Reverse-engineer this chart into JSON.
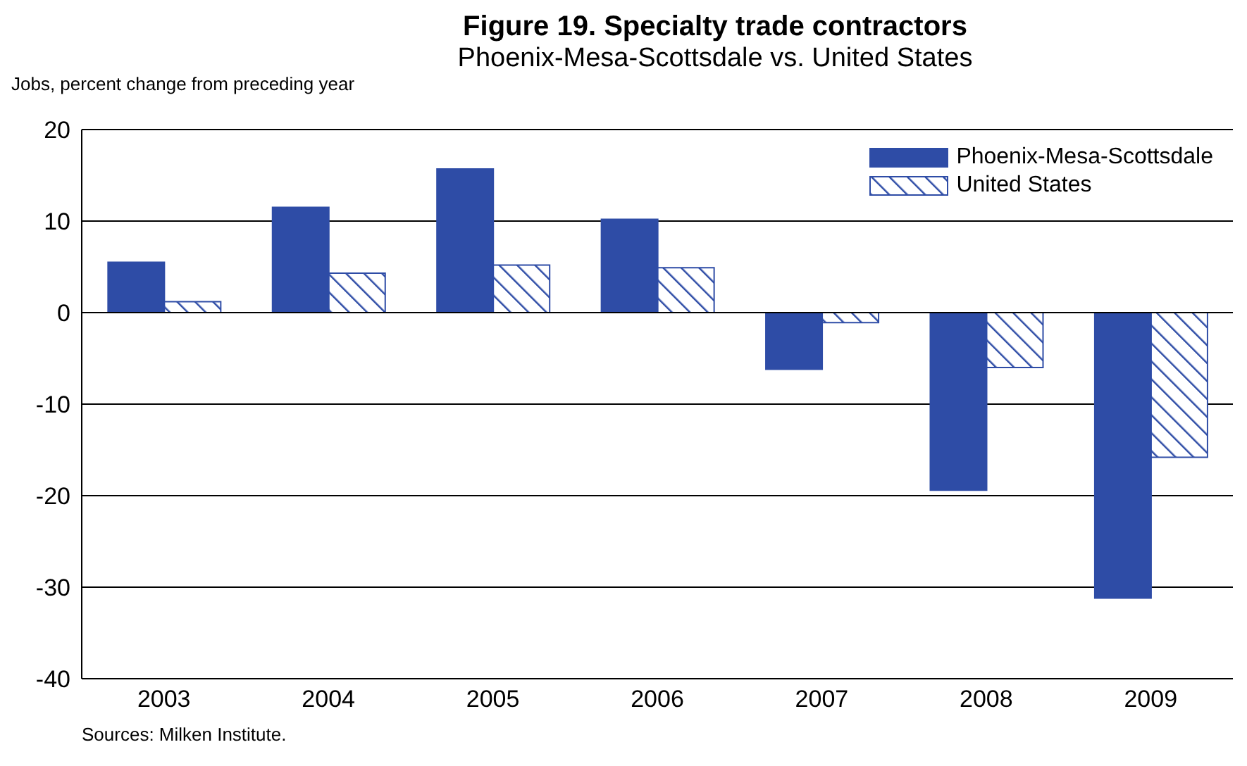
{
  "chart_data": {
    "type": "bar",
    "title": "Figure 19. Specialty trade contractors",
    "subtitle": "Phoenix-Mesa-Scottsdale vs. United States",
    "ylabel": "Jobs, percent change from preceding year",
    "annotations": [
      "Sources: Milken Institute."
    ],
    "categories": [
      "2003",
      "2004",
      "2005",
      "2006",
      "2007",
      "2008",
      "2009"
    ],
    "series": [
      {
        "name": "Phoenix-Mesa-Scottsdale",
        "color": "#2e4ca6",
        "values": [
          5.5,
          11.5,
          15.7,
          10.2,
          -6.2,
          -19.4,
          -31.2
        ]
      },
      {
        "name": "United States",
        "color": "#2e4ca6",
        "values": [
          1.2,
          4.3,
          5.2,
          4.9,
          -1.1,
          -6.0,
          -15.8
        ]
      }
    ],
    "ylim": [
      -40,
      20
    ],
    "yticks": [
      -40,
      -30,
      -20,
      -10,
      0,
      10,
      20
    ],
    "grid": "y",
    "legend": "top right"
  }
}
